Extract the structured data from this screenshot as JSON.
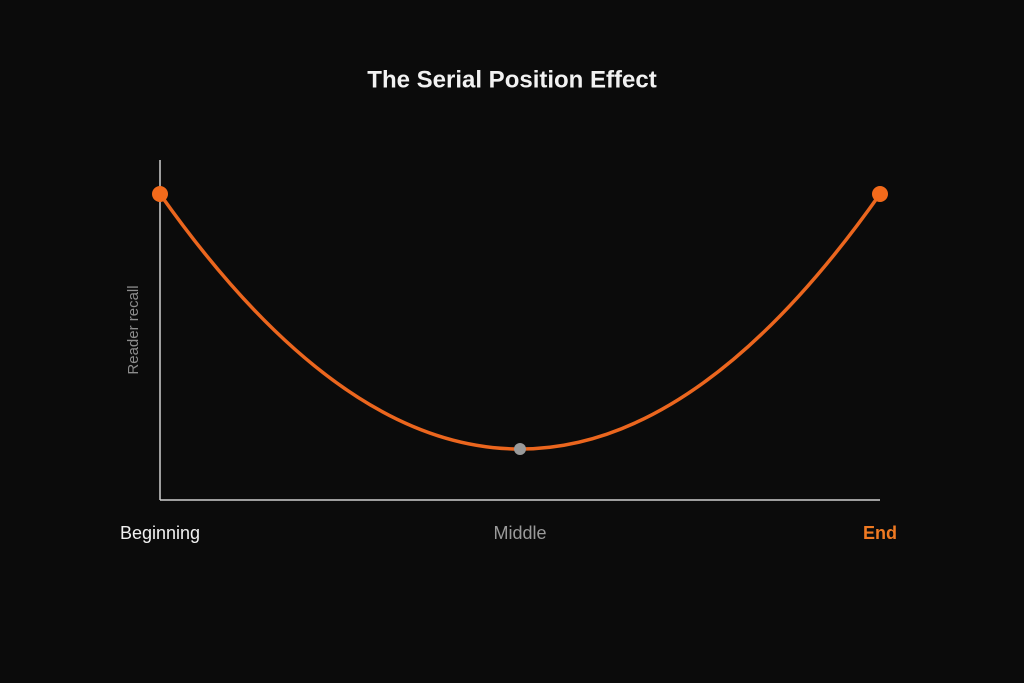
{
  "chart_data": {
    "type": "line",
    "title": "The Serial Position Effect",
    "y_label": "Reader recall",
    "categories": [
      "Beginning",
      "Middle",
      "End"
    ],
    "series": [
      {
        "color": "#eb661e",
        "values": [
          0.9,
          0.15,
          0.9
        ]
      }
    ],
    "point_colors": [
      "#f26a1b",
      "#9a9a9a",
      "#f26a1b"
    ],
    "category_colors": [
      "#f2f2f2",
      "#9a9a9a",
      "#f07a22"
    ],
    "ylim": [
      0,
      1
    ],
    "smooth": true
  }
}
